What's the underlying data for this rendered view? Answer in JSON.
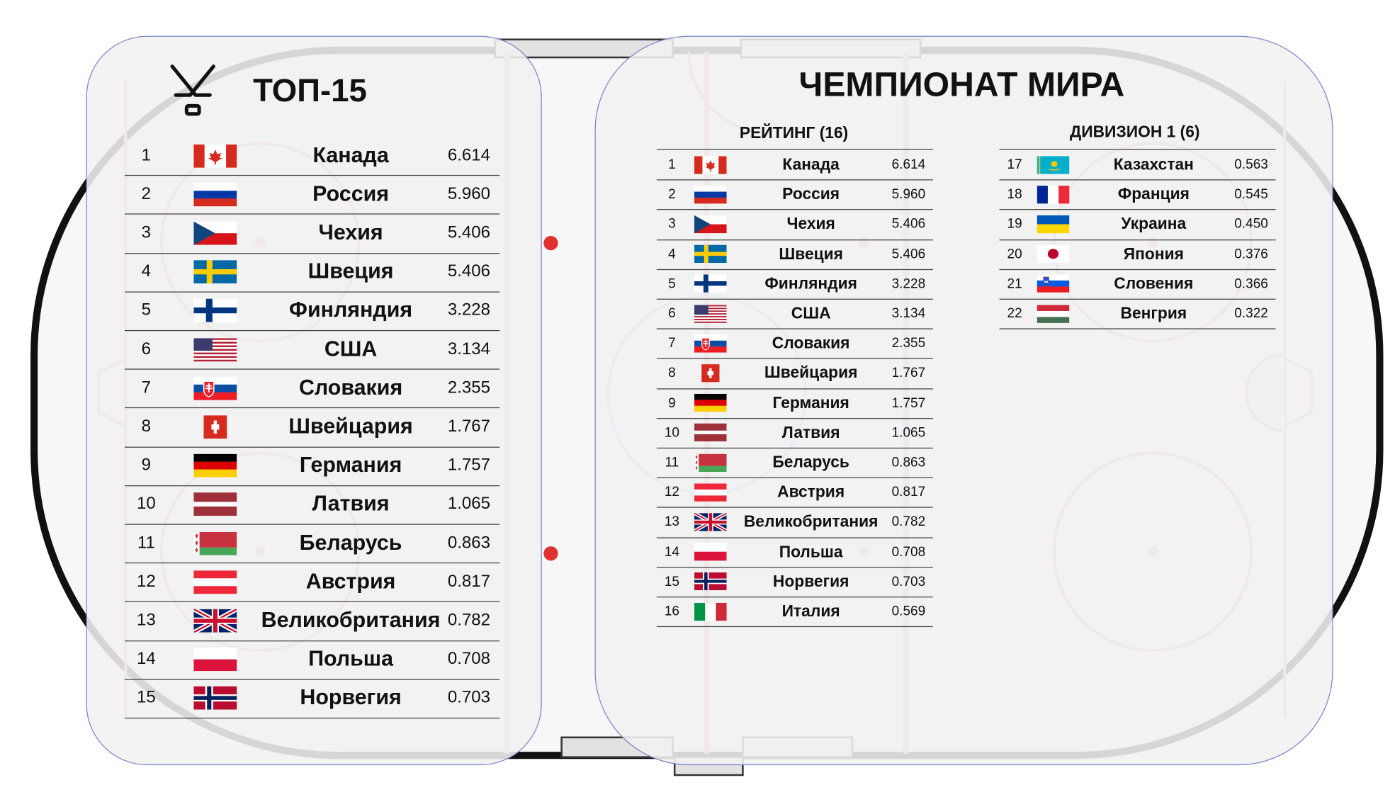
{
  "top15": {
    "title": "ТОП-15",
    "icon": "hockey-sticks-icon",
    "rows": [
      {
        "rank": "1",
        "country": "Канада",
        "score": "6.614",
        "flag": "canada"
      },
      {
        "rank": "2",
        "country": "Россия",
        "score": "5.960",
        "flag": "russia"
      },
      {
        "rank": "3",
        "country": "Чехия",
        "score": "5.406",
        "flag": "czechia"
      },
      {
        "rank": "4",
        "country": "Швеция",
        "score": "5.406",
        "flag": "sweden"
      },
      {
        "rank": "5",
        "country": "Финляндия",
        "score": "3.228",
        "flag": "finland"
      },
      {
        "rank": "6",
        "country": "США",
        "score": "3.134",
        "flag": "usa"
      },
      {
        "rank": "7",
        "country": "Словакия",
        "score": "2.355",
        "flag": "slovakia"
      },
      {
        "rank": "8",
        "country": "Швейцария",
        "score": "1.767",
        "flag": "switzerland"
      },
      {
        "rank": "9",
        "country": "Германия",
        "score": "1.757",
        "flag": "germany"
      },
      {
        "rank": "10",
        "country": "Латвия",
        "score": "1.065",
        "flag": "latvia"
      },
      {
        "rank": "11",
        "country": "Беларусь",
        "score": "0.863",
        "flag": "belarus"
      },
      {
        "rank": "12",
        "country": "Австрия",
        "score": "0.817",
        "flag": "austria"
      },
      {
        "rank": "13",
        "country": "Великобритания",
        "score": "0.782",
        "flag": "uk"
      },
      {
        "rank": "14",
        "country": "Польша",
        "score": "0.708",
        "flag": "poland"
      },
      {
        "rank": "15",
        "country": "Норвегия",
        "score": "0.703",
        "flag": "norway"
      }
    ]
  },
  "championship": {
    "title": "ЧЕМПИОНАТ МИРА",
    "rating": {
      "title": "РЕЙТИНГ (16)",
      "rows": [
        {
          "rank": "1",
          "country": "Канада",
          "score": "6.614",
          "flag": "canada"
        },
        {
          "rank": "2",
          "country": "Россия",
          "score": "5.960",
          "flag": "russia"
        },
        {
          "rank": "3",
          "country": "Чехия",
          "score": "5.406",
          "flag": "czechia"
        },
        {
          "rank": "4",
          "country": "Швеция",
          "score": "5.406",
          "flag": "sweden"
        },
        {
          "rank": "5",
          "country": "Финляндия",
          "score": "3.228",
          "flag": "finland"
        },
        {
          "rank": "6",
          "country": "США",
          "score": "3.134",
          "flag": "usa"
        },
        {
          "rank": "7",
          "country": "Словакия",
          "score": "2.355",
          "flag": "slovakia"
        },
        {
          "rank": "8",
          "country": "Швейцария",
          "score": "1.767",
          "flag": "switzerland"
        },
        {
          "rank": "9",
          "country": "Германия",
          "score": "1.757",
          "flag": "germany"
        },
        {
          "rank": "10",
          "country": "Латвия",
          "score": "1.065",
          "flag": "latvia"
        },
        {
          "rank": "11",
          "country": "Беларусь",
          "score": "0.863",
          "flag": "belarus"
        },
        {
          "rank": "12",
          "country": "Австрия",
          "score": "0.817",
          "flag": "austria"
        },
        {
          "rank": "13",
          "country": "Великобритания",
          "score": "0.782",
          "flag": "uk"
        },
        {
          "rank": "14",
          "country": "Польша",
          "score": "0.708",
          "flag": "poland"
        },
        {
          "rank": "15",
          "country": "Норвегия",
          "score": "0.703",
          "flag": "norway"
        },
        {
          "rank": "16",
          "country": "Италия",
          "score": "0.569",
          "flag": "italy"
        }
      ]
    },
    "division1": {
      "title": "ДИВИЗИОН 1 (6)",
      "rows": [
        {
          "rank": "17",
          "country": "Казахстан",
          "score": "0.563",
          "flag": "kazakhstan"
        },
        {
          "rank": "18",
          "country": "Франция",
          "score": "0.545",
          "flag": "france"
        },
        {
          "rank": "19",
          "country": "Украина",
          "score": "0.450",
          "flag": "ukraine"
        },
        {
          "rank": "20",
          "country": "Япония",
          "score": "0.376",
          "flag": "japan"
        },
        {
          "rank": "21",
          "country": "Словения",
          "score": "0.366",
          "flag": "slovenia"
        },
        {
          "rank": "22",
          "country": "Венгрия",
          "score": "0.322",
          "flag": "hungary"
        }
      ]
    }
  },
  "colors": {
    "rink_red": "#e8a0a0",
    "rink_blue": "#a9c0e8",
    "panel_border": "#7a86c8",
    "face_dot": "#e03030"
  }
}
